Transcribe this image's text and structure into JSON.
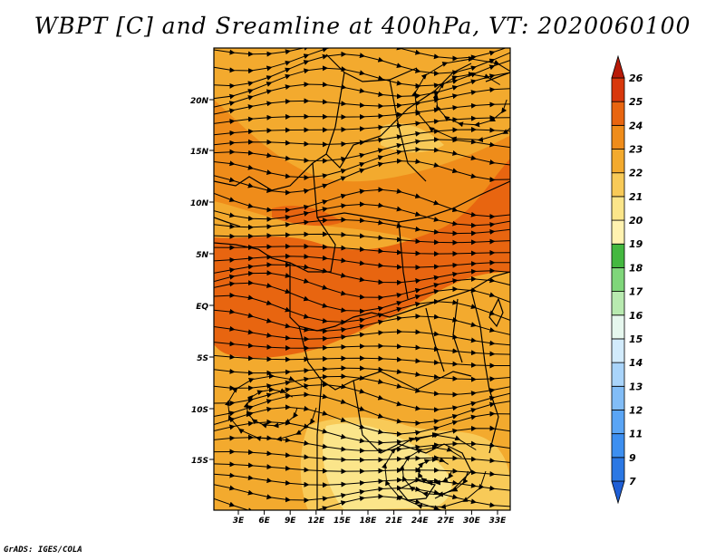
{
  "title": "WBPT [C] and Sreamline at 400hPa, VT: 2020060100",
  "credit": "GrADS: IGES/COLA",
  "map": {
    "lat_labels": [
      "20N",
      "15N",
      "10N",
      "5N",
      "EQ",
      "5S",
      "10S",
      "15S"
    ],
    "lon_labels": [
      "3E",
      "6E",
      "9E",
      "12E",
      "15E",
      "18E",
      "21E",
      "24E",
      "27E",
      "30E",
      "33E"
    ]
  },
  "colorbar": {
    "levels": [
      "7",
      "9",
      "11",
      "12",
      "13",
      "14",
      "15",
      "16",
      "17",
      "18",
      "19",
      "20",
      "21",
      "22",
      "23",
      "24",
      "25",
      "26"
    ],
    "colors": [
      "#1f5fd6",
      "#2b78e4",
      "#3d8ff0",
      "#5aa5f5",
      "#82bdf7",
      "#a9d4fa",
      "#d2ebfc",
      "#e6f7ee",
      "#b8eab0",
      "#7fd67a",
      "#44b840",
      "#fff2b0",
      "#fbe58a",
      "#f8ca58",
      "#f3aa2e",
      "#ef8c1a",
      "#e86510",
      "#d8380c",
      "#b81a08"
    ],
    "colors_note": ""
  },
  "field_colors": {
    "c19": "#fbe58a",
    "c20": "#f8ca58",
    "c21": "#f3aa2e",
    "c22": "#ef8c1a",
    "c23": "#e86510"
  }
}
